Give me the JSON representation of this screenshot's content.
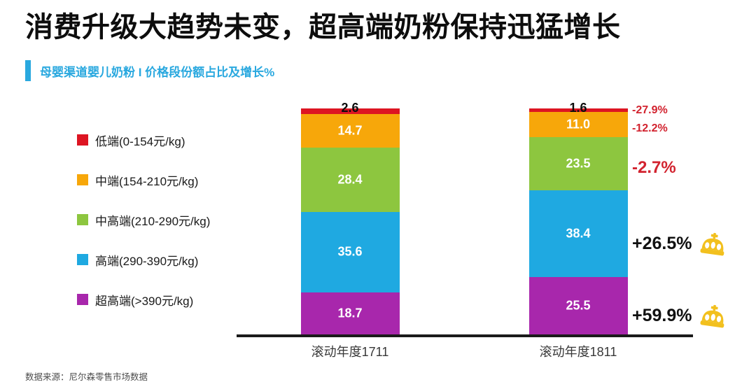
{
  "title": "消费升级大趋势未变，超高端奶粉保持迅猛增长",
  "subtitle": "母婴渠道婴儿奶粉 I 价格段份额占比及增长%",
  "footer": "数据来源：尼尔森零售市场数据",
  "colors": {
    "accent": "#29A8DF",
    "annotation_negative": "#D2232F",
    "annotation_positive": "#111111",
    "crown": "#F2C01E",
    "axis": "#1A1A1A"
  },
  "chart_data": {
    "type": "stacked-bar",
    "title": "母婴渠道婴儿奶粉 价格段份额占比及增长%",
    "unit": "share %",
    "categories": [
      "滚动年度1711",
      "滚动年度1811"
    ],
    "series": [
      {
        "name": "低端(0-154元/kg)",
        "color": "#DD1522",
        "values": [
          2.6,
          1.6
        ]
      },
      {
        "name": "中端(154-210元/kg)",
        "color": "#F7A70A",
        "values": [
          14.7,
          11.0
        ]
      },
      {
        "name": "中高端(210-290元/kg)",
        "color": "#8DC63F",
        "values": [
          28.4,
          23.5
        ]
      },
      {
        "name": "高端(290-390元/kg)",
        "color": "#1FA9E1",
        "values": [
          35.6,
          38.4
        ]
      },
      {
        "name": "超高端(>390元/kg)",
        "color": "#A827AC",
        "values": [
          18.7,
          25.5
        ]
      }
    ],
    "growth_annotations": [
      {
        "series": "低端(0-154元/kg)",
        "text": "-27.9%",
        "tone": "negative",
        "size": "small",
        "crown": false
      },
      {
        "series": "中端(154-210元/kg)",
        "text": "-12.2%",
        "tone": "negative",
        "size": "small",
        "crown": false
      },
      {
        "series": "中高端(210-290元/kg)",
        "text": "-2.7%",
        "tone": "negative",
        "size": "medium",
        "crown": false
      },
      {
        "series": "高端(290-390元/kg)",
        "text": "+26.5%",
        "tone": "positive",
        "size": "large",
        "crown": true
      },
      {
        "series": "超高端(>390元/kg)",
        "text": "+59.9%",
        "tone": "positive",
        "size": "large",
        "crown": true
      }
    ],
    "ylim": [
      0,
      100
    ],
    "stack_order": "top-to-bottom",
    "legend_position": "left",
    "grid": false
  }
}
